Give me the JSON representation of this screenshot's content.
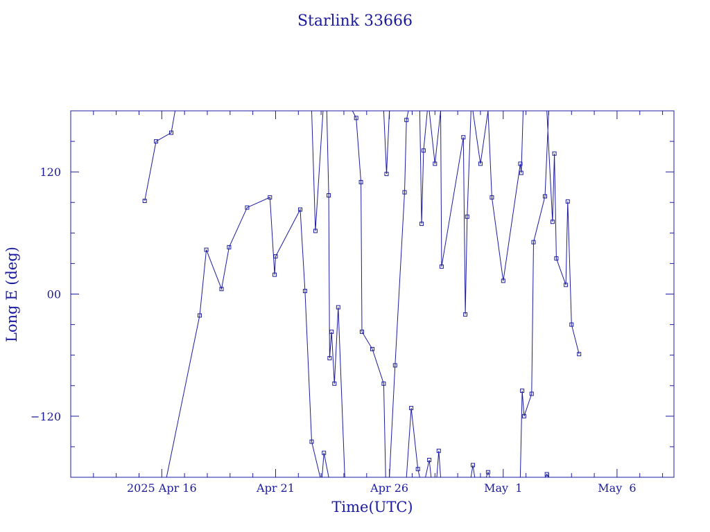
{
  "chart_data": {
    "type": "scatter",
    "title": "Starlink 33666",
    "xlabel": "Time(UTC)",
    "ylabel": "Long E (deg)",
    "xlim": [
      "2025-04-12T00:00",
      "2025-05-08T12:00"
    ],
    "ylim": [
      -180,
      180
    ],
    "x_ticks": [
      {
        "date": "2025-04-16",
        "label": "2025 Apr 16"
      },
      {
        "date": "2025-04-21",
        "label": "Apr 21"
      },
      {
        "date": "2025-04-26",
        "label": "Apr 26"
      },
      {
        "date": "2025-05-01",
        "label": "May  1"
      },
      {
        "date": "2025-05-06",
        "label": "May  6"
      }
    ],
    "x_minor_ticks": [
      "2025-04-13",
      "2025-04-14",
      "2025-04-15",
      "2025-04-17",
      "2025-04-18",
      "2025-04-19",
      "2025-04-20",
      "2025-04-22",
      "2025-04-23",
      "2025-04-24",
      "2025-04-25",
      "2025-04-27",
      "2025-04-28",
      "2025-04-29",
      "2025-04-30",
      "2025-05-02",
      "2025-05-03",
      "2025-05-04",
      "2025-05-05",
      "2025-05-07",
      "2025-05-08"
    ],
    "y_ticks": [
      {
        "value": 120,
        "label": "120"
      },
      {
        "value": 0,
        "label": "00"
      },
      {
        "value": -120,
        "label": "−120"
      }
    ],
    "y_minor_ticks": [
      150,
      90,
      60,
      30,
      -30,
      -60,
      -90,
      -150
    ],
    "grid": false,
    "line_color": "#1a1aa0",
    "series": [
      {
        "points": [
          [
            "2025-04-15T06:00",
            91.5
          ],
          [
            "2025-04-15T18:00",
            150.0
          ],
          [
            "2025-04-16T10:00",
            158.5
          ],
          [
            "2025-04-16T14:00",
            180
          ],
          null,
          [
            "2025-04-16T05:00",
            -180
          ],
          [
            "2025-04-17T16:00",
            -21.0
          ],
          [
            "2025-04-17T23:00",
            43.5
          ],
          [
            "2025-04-18T15:00",
            5.0
          ],
          [
            "2025-04-18T23:00",
            46.0
          ],
          [
            "2025-04-19T18:00",
            85.0
          ],
          [
            "2025-04-20T18:00",
            95.0
          ],
          [
            "2025-04-20T23:00",
            19.0
          ],
          [
            "2025-04-21T00:00",
            37.0
          ],
          [
            "2025-04-22T02:00",
            83.0
          ],
          [
            "2025-04-22T07:00",
            3.0
          ],
          [
            "2025-04-22T14:00",
            -145.0
          ],
          [
            "2025-04-22T23:00",
            -180
          ],
          null,
          [
            "2025-04-22T14:00",
            180
          ],
          [
            "2025-04-22T18:00",
            62.0
          ],
          [
            "2025-04-23T02:00",
            180
          ],
          null,
          [
            "2025-04-23T01:00",
            -180
          ],
          [
            "2025-04-23T03:00",
            -156.0
          ],
          [
            "2025-04-23T08:00",
            -180
          ],
          null,
          [
            "2025-04-23T06:00",
            180
          ],
          [
            "2025-04-23T08:00",
            97.0
          ],
          [
            "2025-04-23T09:00",
            -63.0
          ],
          [
            "2025-04-23T11:00",
            -37.0
          ],
          [
            "2025-04-23T14:00",
            -88.0
          ],
          [
            "2025-04-23T18:00",
            -13.0
          ],
          [
            "2025-04-24T01:00",
            -180
          ],
          null,
          [
            "2025-04-24T09:00",
            180
          ],
          [
            "2025-04-24T13:00",
            173.0
          ],
          [
            "2025-04-24T18:00",
            110.0
          ],
          [
            "2025-04-24T19:00",
            -37.0
          ],
          [
            "2025-04-25T06:00",
            -54.0
          ],
          [
            "2025-04-25T18:00",
            -88.0
          ],
          [
            "2025-04-25T20:00",
            -180
          ],
          null,
          [
            "2025-04-25T18:00",
            180
          ],
          [
            "2025-04-25T21:00",
            118.0
          ],
          [
            "2025-04-26T00:00",
            180
          ],
          null,
          [
            "2025-04-26T00:00",
            -180
          ],
          [
            "2025-04-26T06:00",
            -70.0
          ],
          [
            "2025-04-26T16:00",
            100.0
          ],
          [
            "2025-04-26T18:00",
            171.0
          ],
          [
            "2025-04-26T20:00",
            180
          ],
          null,
          [
            "2025-04-26T18:00",
            -180
          ],
          [
            "2025-04-26T23:00",
            -112.0
          ],
          [
            "2025-04-27T06:00",
            -172.0
          ],
          [
            "2025-04-27T08:00",
            -180
          ],
          null,
          [
            "2025-04-27T08:00",
            180
          ],
          [
            "2025-04-27T10:00",
            69.0
          ],
          [
            "2025-04-27T12:00",
            141.0
          ],
          [
            "2025-04-27T16:00",
            180
          ],
          null,
          [
            "2025-04-27T14:00",
            -180
          ],
          [
            "2025-04-27T18:00",
            -163.0
          ],
          [
            "2025-04-27T20:00",
            -180
          ],
          null,
          [
            "2025-04-27T18:00",
            180
          ],
          [
            "2025-04-28T00:00",
            128.0
          ],
          [
            "2025-04-28T06:00",
            180
          ],
          null,
          [
            "2025-04-28T02:00",
            -180
          ],
          [
            "2025-04-28T04:00",
            -154.0
          ],
          [
            "2025-04-28T06:00",
            -180
          ],
          null,
          [
            "2025-04-28T06:00",
            180
          ],
          [
            "2025-04-28T07:00",
            27.0
          ],
          [
            "2025-04-29T06:00",
            154.0
          ],
          [
            "2025-04-29T08:00",
            -20.0
          ],
          [
            "2025-04-29T10:00",
            76.0
          ],
          [
            "2025-04-29T14:00",
            180
          ],
          null,
          [
            "2025-04-29T14:00",
            -180
          ],
          [
            "2025-04-29T16:00",
            -168.0
          ],
          [
            "2025-04-29T18:00",
            -180
          ],
          null,
          [
            "2025-04-29T16:00",
            180
          ],
          [
            "2025-04-30T00:00",
            128.0
          ],
          [
            "2025-04-30T08:00",
            180
          ],
          null,
          [
            "2025-04-30T06:00",
            -180
          ],
          [
            "2025-04-30T08:00",
            -175.0
          ],
          [
            "2025-04-30T10:00",
            -180
          ],
          null,
          [
            "2025-04-30T08:00",
            180
          ],
          [
            "2025-04-30T12:00",
            95.0
          ],
          [
            "2025-05-01T00:00",
            13.0
          ],
          [
            "2025-05-01T18:00",
            128.0
          ],
          [
            "2025-05-01T19:00",
            119.0
          ],
          [
            "2025-05-01T21:00",
            180
          ],
          null,
          [
            "2025-05-01T18:00",
            -180
          ],
          [
            "2025-05-01T20:00",
            -95.0
          ],
          [
            "2025-05-01T22:00",
            -120.0
          ],
          [
            "2025-05-02T06:00",
            -98.0
          ],
          [
            "2025-05-02T08:00",
            51.0
          ],
          [
            "2025-05-02T20:00",
            96.0
          ],
          [
            "2025-05-03T00:00",
            180
          ],
          null,
          [
            "2025-05-02T20:00",
            -180
          ],
          [
            "2025-05-02T22:00",
            -177.0
          ],
          [
            "2025-05-03T00:00",
            -180
          ],
          null,
          [
            "2025-05-02T22:00",
            180
          ],
          [
            "2025-05-03T04:00",
            71.0
          ],
          [
            "2025-05-03T06:00",
            138.0
          ],
          [
            "2025-05-03T08:00",
            35.0
          ],
          [
            "2025-05-03T18:00",
            9.0
          ],
          [
            "2025-05-03T20:00",
            91.0
          ],
          [
            "2025-05-04T00:00",
            -30.0
          ],
          [
            "2025-05-04T08:00",
            -59.0
          ]
        ]
      }
    ]
  }
}
